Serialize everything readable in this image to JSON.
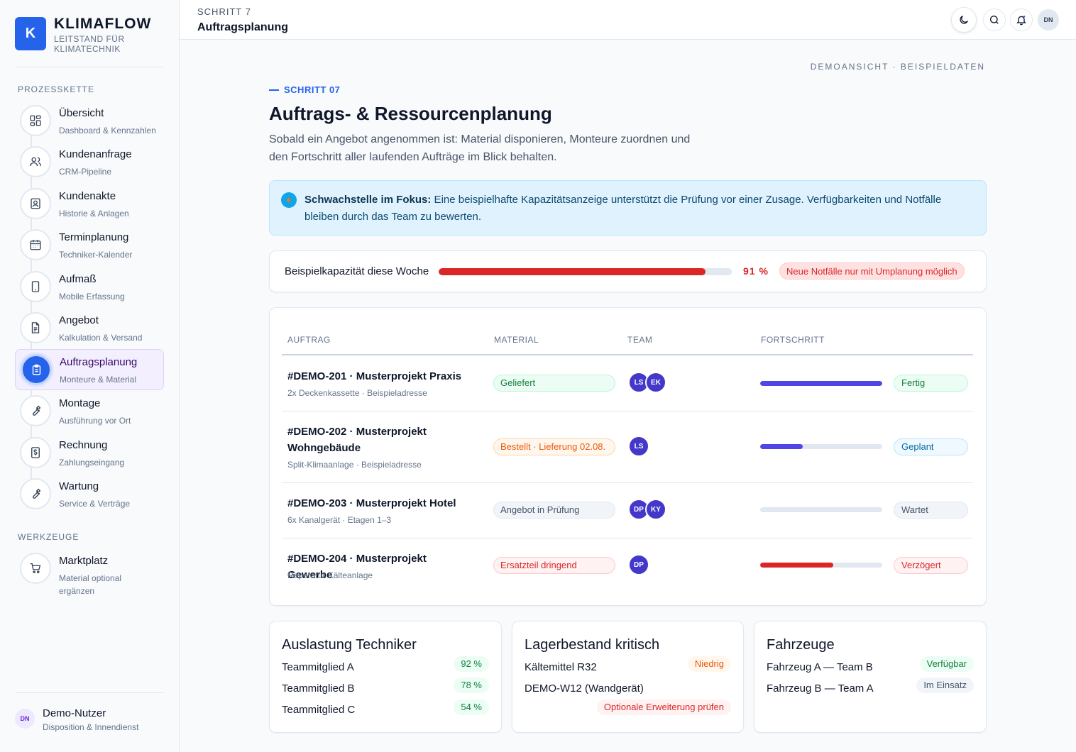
{
  "brand": {
    "logo_letter": "K",
    "name": "KLIMAFLOW",
    "subtitle": "LEITSTAND FÜR KLIMATECHNIK"
  },
  "sidebar": {
    "section_process": "PROZESSKETTE",
    "section_tools": "WERKZEUGE",
    "items": [
      {
        "label": "Übersicht",
        "sub": "Dashboard & Kennzahlen",
        "icon": "dashboard-icon"
      },
      {
        "label": "Kundenanfrage",
        "sub": "CRM-Pipeline",
        "icon": "users-icon"
      },
      {
        "label": "Kundenakte",
        "sub": "Historie & Anlagen",
        "icon": "contact-card-icon"
      },
      {
        "label": "Terminplanung",
        "sub": "Techniker-Kalender",
        "icon": "calendar-icon"
      },
      {
        "label": "Aufmaß",
        "sub": "Mobile Erfassung",
        "icon": "tablet-icon"
      },
      {
        "label": "Angebot",
        "sub": "Kalkulation & Versand",
        "icon": "document-icon"
      },
      {
        "label": "Auftragsplanung",
        "sub": "Monteure & Material",
        "icon": "clipboard-icon"
      },
      {
        "label": "Montage",
        "sub": "Ausführung vor Ort",
        "icon": "wrench-icon"
      },
      {
        "label": "Rechnung",
        "sub": "Zahlungseingang",
        "icon": "invoice-icon"
      },
      {
        "label": "Wartung",
        "sub": "Service & Verträge",
        "icon": "wrench-icon"
      }
    ],
    "tools": [
      {
        "label": "Marktplatz",
        "sub": "Material optional ergänzen",
        "icon": "cart-icon"
      }
    ],
    "active_index": 6,
    "user": {
      "initials": "DN",
      "name": "Demo-Nutzer",
      "role": "Disposition & Innendienst"
    }
  },
  "topbar": {
    "step": "SCHRITT 7",
    "title": "Auftragsplanung",
    "avatar": "DN"
  },
  "main": {
    "demo_note": "DEMOANSICHT · BEISPIELDATEN",
    "kicker": "SCHRITT 07",
    "title": "Auftrags- & Ressourcenplanung",
    "lede": "Sobald ein Angebot angenommen ist: Material disponieren, Monteure zuordnen und den Fortschritt aller laufenden Aufträge im Blick behalten.",
    "focus": {
      "strong": "Schwachstelle im Fokus:",
      "text": " Eine beispielhafte Kapazitätsanzeige unterstützt die Prüfung vor einer Zusage. Verfügbarkeiten und Notfälle bleiben durch das Team zu bewerten."
    },
    "capacity": {
      "label": "Beispielkapazität diese Woche",
      "value": 91,
      "value_text": "91 %",
      "warning": "Neue Notfälle nur mit Umplanung möglich"
    }
  },
  "table": {
    "headers": [
      "AUFTRAG",
      "MATERIAL",
      "TEAM",
      "FORTSCHRITT"
    ],
    "rows": [
      {
        "title": "#DEMO-201 · Musterprojekt Praxis",
        "sub": "2x Deckenkassette · Beispieladresse",
        "material": "Geliefert",
        "team": [
          "LS",
          "EK"
        ],
        "progress": 100,
        "status": "Fertig"
      },
      {
        "title": "#DEMO-202 · Musterprojekt Wohngebäude",
        "sub": "Split-Klimaanlage · Beispieladresse",
        "material": "Bestellt · Lieferung 02.08.",
        "team": [
          "LS"
        ],
        "progress": 35,
        "status": "Geplant"
      },
      {
        "title": "#DEMO-203 · Musterprojekt Hotel",
        "sub": "6x Kanalgerät · Etagen 1–3",
        "material": "Angebot in Prüfung",
        "team": [
          "DP",
          "KY"
        ],
        "progress": 0,
        "status": "Wartet"
      },
      {
        "title": "#DEMO-204 · Musterprojekt Gewerbe",
        "sub": "Reparatur Kälteanlage",
        "material": "Ersatzteil dringend",
        "team": [
          "DP"
        ],
        "progress": 60,
        "status": "Verzögert"
      }
    ]
  },
  "cards": [
    {
      "title": "Auslastung Techniker",
      "rows": [
        {
          "label": "Teammitglied A",
          "badge": "92 %"
        },
        {
          "label": "Teammitglied B",
          "badge": "78 %"
        },
        {
          "label": "Teammitglied C",
          "badge": "54 %"
        }
      ]
    },
    {
      "title": "Lagerbestand kritisch",
      "rows": [
        {
          "label": "Kältemittel R32",
          "badge": "Niedrig"
        },
        {
          "label": "DEMO-W12 (Wandgerät)",
          "badge": "Optionale Erweiterung prüfen"
        }
      ]
    },
    {
      "title": "Fahrzeuge",
      "rows": [
        {
          "label": "Fahrzeug A — Team B",
          "badge": "Verfügbar"
        },
        {
          "label": "Fahrzeug B — Team A",
          "badge": "Im Einsatz"
        }
      ]
    }
  ],
  "colors": {
    "accent": "#2563eb",
    "danger": "#dc2626",
    "progress": "#4f46e5"
  }
}
